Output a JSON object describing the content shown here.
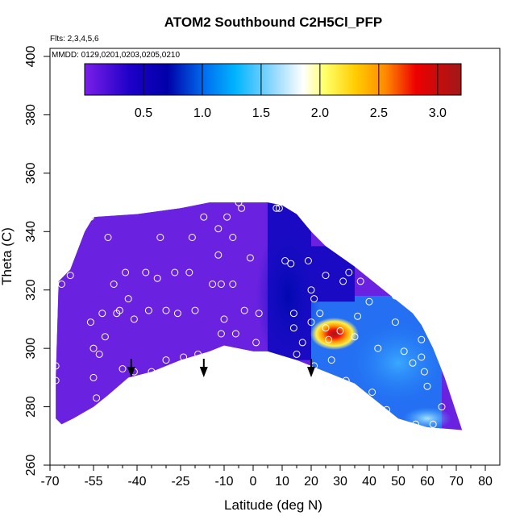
{
  "chart_data": {
    "type": "heatmap",
    "title": "ATOM2 Southbound C2H5Cl_PFP",
    "annotations": {
      "flights": "Flts: 2,3,4,5,6",
      "dates": "MMDD: 0129,0201,0203,0205,0210"
    },
    "xlabel": "Latitude (deg N)",
    "ylabel": "Theta (C)",
    "xlim": [
      -70,
      80
    ],
    "ylim": [
      260,
      400
    ],
    "x_ticks": [
      -70,
      -55,
      -40,
      -25,
      -10,
      0,
      10,
      20,
      30,
      40,
      50,
      60,
      70,
      80
    ],
    "x_tick_labels": [
      "-70",
      "-55",
      "-40",
      "-25",
      "-10",
      "0",
      "10",
      "20",
      "30",
      "40",
      "50",
      "60",
      "70",
      "80"
    ],
    "y_ticks": [
      260,
      280,
      300,
      320,
      340,
      360,
      380,
      400
    ],
    "y_tick_labels": [
      "260",
      "280",
      "300",
      "320",
      "340",
      "360",
      "380",
      "400"
    ],
    "colorbar": {
      "range": [
        0.0,
        3.2
      ],
      "ticks": [
        0.5,
        1.0,
        1.5,
        2.0,
        2.5,
        3.0
      ],
      "tick_labels": [
        "0.5",
        "1.0",
        "1.5",
        "2.0",
        "2.5",
        "3.0"
      ],
      "colors": [
        "#7a1fe8",
        "#0000a8",
        "#00b4ff",
        "#ffffff",
        "#ffff66",
        "#ffaa00",
        "#ee0000",
        "#a01818"
      ]
    },
    "field_boundary": {
      "upper": [
        [
          -67,
          323
        ],
        [
          -63,
          327
        ],
        [
          -58,
          340
        ],
        [
          -55,
          345
        ],
        [
          -40,
          346
        ],
        [
          -25,
          348
        ],
        [
          -15,
          350
        ],
        [
          -5,
          350
        ],
        [
          5,
          350
        ],
        [
          10,
          349
        ],
        [
          15,
          346
        ],
        [
          20,
          340
        ],
        [
          25,
          335
        ],
        [
          35,
          328
        ],
        [
          45,
          320
        ],
        [
          55,
          312
        ],
        [
          58,
          308
        ],
        [
          62,
          300
        ],
        [
          66,
          290
        ],
        [
          70,
          278
        ],
        [
          72,
          272
        ]
      ],
      "lower": [
        [
          72,
          272
        ],
        [
          60,
          273
        ],
        [
          50,
          276
        ],
        [
          45,
          280
        ],
        [
          40,
          284
        ],
        [
          35,
          288
        ],
        [
          25,
          292
        ],
        [
          15,
          296
        ],
        [
          5,
          299
        ],
        [
          0,
          299
        ],
        [
          -10,
          301
        ],
        [
          -15,
          299
        ],
        [
          -25,
          296
        ],
        [
          -35,
          292
        ],
        [
          -43,
          290
        ],
        [
          -50,
          284
        ],
        [
          -55,
          280
        ],
        [
          -62,
          276
        ],
        [
          -66,
          274
        ],
        [
          -68,
          276
        ],
        [
          -68,
          290
        ],
        [
          -67,
          323
        ]
      ]
    },
    "field_features": [
      {
        "x": [
          -68,
          5
        ],
        "y": [
          274,
          350
        ],
        "value": 0.2
      },
      {
        "x": [
          5,
          20
        ],
        "y": [
          296,
          350
        ],
        "value": 0.4
      },
      {
        "x": [
          20,
          35
        ],
        "y": [
          316,
          335
        ],
        "value": 0.4
      },
      {
        "x": [
          35,
          65
        ],
        "y": [
          272,
          318
        ],
        "value": 0.9
      },
      {
        "x": [
          20,
          35
        ],
        "y": [
          288,
          316
        ],
        "value": 1.0
      }
    ],
    "hotspot": {
      "x": 28,
      "y": 305,
      "value": 3.1
    },
    "points": [
      [
        -68,
        294
      ],
      [
        -68,
        289
      ],
      [
        -66,
        322
      ],
      [
        -63,
        325
      ],
      [
        -56,
        345
      ],
      [
        -56,
        309
      ],
      [
        -55,
        300
      ],
      [
        -55,
        290
      ],
      [
        -54,
        283
      ],
      [
        -53,
        298
      ],
      [
        -52,
        312
      ],
      [
        -51,
        304
      ],
      [
        -50,
        338
      ],
      [
        -48,
        322
      ],
      [
        -47,
        312
      ],
      [
        -46,
        313
      ],
      [
        -45,
        293
      ],
      [
        -44,
        326
      ],
      [
        -43,
        317
      ],
      [
        -41,
        310
      ],
      [
        -41,
        292
      ],
      [
        -37,
        326
      ],
      [
        -36,
        313
      ],
      [
        -35,
        292
      ],
      [
        -33,
        324
      ],
      [
        -32,
        338
      ],
      [
        -30,
        313
      ],
      [
        -30,
        296
      ],
      [
        -27,
        326
      ],
      [
        -26,
        312
      ],
      [
        -24,
        297
      ],
      [
        -22,
        326
      ],
      [
        -21,
        338
      ],
      [
        -20,
        313
      ],
      [
        -19,
        298
      ],
      [
        -17,
        345
      ],
      [
        -14,
        322
      ],
      [
        -12,
        341
      ],
      [
        -12,
        332
      ],
      [
        -11,
        322
      ],
      [
        -11,
        305
      ],
      [
        -10,
        310
      ],
      [
        -9,
        345
      ],
      [
        -7,
        338
      ],
      [
        -7,
        322
      ],
      [
        -6,
        305
      ],
      [
        -5,
        350
      ],
      [
        -4,
        348
      ],
      [
        -3,
        313
      ],
      [
        -1,
        331
      ],
      [
        1,
        302
      ],
      [
        2,
        312
      ],
      [
        8,
        348
      ],
      [
        9,
        348
      ],
      [
        11,
        330
      ],
      [
        13,
        329
      ],
      [
        14,
        312
      ],
      [
        14,
        307
      ],
      [
        15,
        298
      ],
      [
        17,
        302
      ],
      [
        19,
        330
      ],
      [
        20,
        320
      ],
      [
        20,
        309
      ],
      [
        21,
        317
      ],
      [
        21,
        294
      ],
      [
        22,
        291
      ],
      [
        23,
        312
      ],
      [
        25,
        325
      ],
      [
        25,
        307
      ],
      [
        26,
        303
      ],
      [
        27,
        296
      ],
      [
        30,
        306
      ],
      [
        31,
        323
      ],
      [
        32,
        289
      ],
      [
        33,
        326
      ],
      [
        35,
        304
      ],
      [
        36,
        311
      ],
      [
        37,
        323
      ],
      [
        40,
        316
      ],
      [
        41,
        285
      ],
      [
        43,
        300
      ],
      [
        46,
        279
      ],
      [
        49,
        318
      ],
      [
        49,
        309
      ],
      [
        52,
        299
      ],
      [
        55,
        295
      ],
      [
        56,
        274
      ],
      [
        58,
        303
      ],
      [
        58,
        297
      ],
      [
        59,
        292
      ],
      [
        60,
        287
      ],
      [
        62,
        274
      ],
      [
        65,
        280
      ]
    ],
    "arrows_x": [
      -42,
      -17,
      20
    ],
    "grid": false
  }
}
